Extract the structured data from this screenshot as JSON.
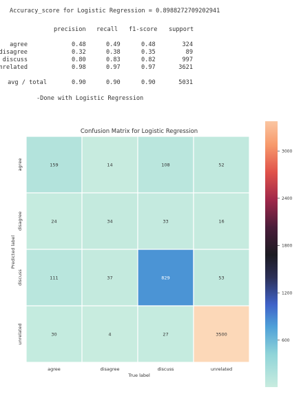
{
  "report": {
    "accuracy_line": "Accuracy_score for Logistic Regression = 0.8988272709202941",
    "headers": [
      "precision",
      "recall",
      "f1-score",
      "support"
    ],
    "rows": [
      {
        "label": "agree",
        "precision": "0.48",
        "recall": "0.49",
        "f1": "0.48",
        "support": "324"
      },
      {
        "label": "disagree",
        "precision": "0.32",
        "recall": "0.38",
        "f1": "0.35",
        "support": "89"
      },
      {
        "label": "discuss",
        "precision": "0.80",
        "recall": "0.83",
        "f1": "0.82",
        "support": "997"
      },
      {
        "label": "unrelated",
        "precision": "0.98",
        "recall": "0.97",
        "f1": "0.97",
        "support": "3621"
      }
    ],
    "total": {
      "label": "avg / total",
      "precision": "0.90",
      "recall": "0.90",
      "f1": "0.90",
      "support": "5031"
    },
    "done_line": "-Done with Logistic Regression"
  },
  "chart_data": {
    "type": "heatmap",
    "title": "Confusion Matrix for Logistic Regression",
    "xlabel": "True label",
    "ylabel": "Predicted label",
    "x_categories": [
      "agree",
      "disagree",
      "discuss",
      "unrelated"
    ],
    "y_categories": [
      "agree",
      "disagree",
      "discuss",
      "unrelated"
    ],
    "values": [
      [
        159,
        14,
        108,
        52
      ],
      [
        24,
        34,
        33,
        16
      ],
      [
        111,
        37,
        829,
        53
      ],
      [
        30,
        4,
        27,
        3500
      ]
    ],
    "colorbar": {
      "ticks": [
        600,
        1200,
        1800,
        2400,
        3000
      ],
      "range": [
        4,
        3500
      ],
      "colormap": "icefire"
    }
  }
}
